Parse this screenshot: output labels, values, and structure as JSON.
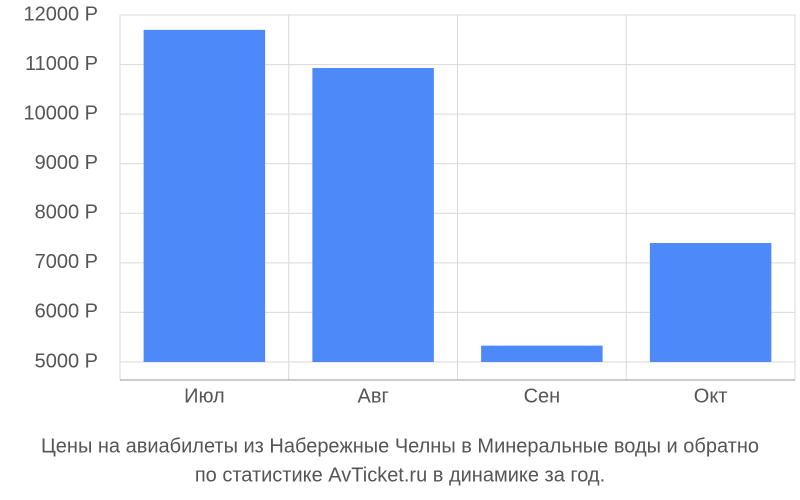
{
  "chart_data": {
    "type": "bar",
    "title": "Цены на авиабилеты из Набережные Челны в Минеральные воды и обратно",
    "subtitle": "по статистике AvTicket.ru в динамике за год.",
    "categories": [
      "Июл",
      "Авг",
      "Сен",
      "Окт"
    ],
    "values": [
      11700,
      10930,
      5330,
      7400
    ],
    "color": "#4d89f9",
    "ylim": [
      5000,
      12000
    ],
    "yticks": [
      {
        "value": 5000,
        "label": "5000 Р"
      },
      {
        "value": 6000,
        "label": "6000 Р"
      },
      {
        "value": 7000,
        "label": "7000 Р"
      },
      {
        "value": 8000,
        "label": "8000 Р"
      },
      {
        "value": 9000,
        "label": "9000 Р"
      },
      {
        "value": 10000,
        "label": "10000 Р"
      },
      {
        "value": 11000,
        "label": "11000 Р"
      },
      {
        "value": 12000,
        "label": "12000 Р"
      }
    ],
    "grid": true
  }
}
